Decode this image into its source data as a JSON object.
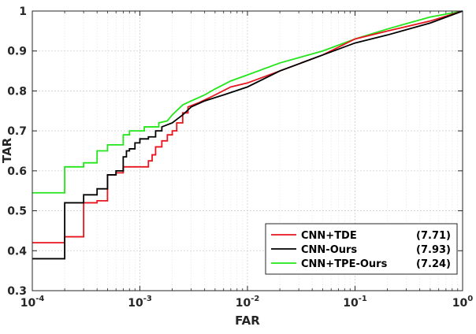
{
  "chart_data": {
    "type": "line",
    "xlabel": "FAR",
    "ylabel": "TAR",
    "x_scale": "log",
    "xlim": [
      0.0001,
      1
    ],
    "ylim": [
      0.3,
      1
    ],
    "x_ticks": [
      {
        "value": 0.0001,
        "base": "10",
        "exp": "-4"
      },
      {
        "value": 0.001,
        "base": "10",
        "exp": "-3"
      },
      {
        "value": 0.01,
        "base": "10",
        "exp": "-2"
      },
      {
        "value": 0.1,
        "base": "10",
        "exp": "-1"
      },
      {
        "value": 1,
        "base": "10",
        "exp": "0"
      }
    ],
    "y_ticks": [
      {
        "value": 0.3,
        "label": "0.3"
      },
      {
        "value": 0.4,
        "label": "0.4"
      },
      {
        "value": 0.5,
        "label": "0.5"
      },
      {
        "value": 0.6,
        "label": "0.6"
      },
      {
        "value": 0.7,
        "label": "0.7"
      },
      {
        "value": 0.8,
        "label": "0.8"
      },
      {
        "value": 0.9,
        "label": "0.9"
      },
      {
        "value": 1,
        "label": "1"
      }
    ],
    "grid": true,
    "legend_position": "bottom-right",
    "series": [
      {
        "name": "CNN+TDE",
        "score": "(7.71)",
        "color": "#e8141e",
        "points": [
          [
            0.0001,
            0.42
          ],
          [
            0.0002,
            0.42
          ],
          [
            0.0002,
            0.435
          ],
          [
            0.0003,
            0.435
          ],
          [
            0.0003,
            0.52
          ],
          [
            0.0004,
            0.52
          ],
          [
            0.0004,
            0.525
          ],
          [
            0.0005,
            0.525
          ],
          [
            0.0005,
            0.59
          ],
          [
            0.0006,
            0.59
          ],
          [
            0.0006,
            0.595
          ],
          [
            0.0007,
            0.595
          ],
          [
            0.0007,
            0.61
          ],
          [
            0.0012,
            0.61
          ],
          [
            0.0012,
            0.625
          ],
          [
            0.0013,
            0.625
          ],
          [
            0.0013,
            0.64
          ],
          [
            0.0014,
            0.64
          ],
          [
            0.0014,
            0.66
          ],
          [
            0.0016,
            0.66
          ],
          [
            0.0016,
            0.675
          ],
          [
            0.0018,
            0.675
          ],
          [
            0.0018,
            0.69
          ],
          [
            0.002,
            0.69
          ],
          [
            0.002,
            0.7
          ],
          [
            0.0022,
            0.7
          ],
          [
            0.0022,
            0.72
          ],
          [
            0.0025,
            0.72
          ],
          [
            0.0025,
            0.745
          ],
          [
            0.0028,
            0.745
          ],
          [
            0.0028,
            0.76
          ],
          [
            0.0035,
            0.77
          ],
          [
            0.005,
            0.79
          ],
          [
            0.007,
            0.81
          ],
          [
            0.01,
            0.82
          ],
          [
            0.02,
            0.85
          ],
          [
            0.05,
            0.89
          ],
          [
            0.1,
            0.93
          ],
          [
            0.2,
            0.95
          ],
          [
            0.5,
            0.975
          ],
          [
            1,
            1
          ]
        ]
      },
      {
        "name": "CNN-Ours",
        "score": "(7.93)",
        "color": "#000000",
        "points": [
          [
            0.0001,
            0.38
          ],
          [
            0.0002,
            0.38
          ],
          [
            0.0002,
            0.52
          ],
          [
            0.0003,
            0.52
          ],
          [
            0.0003,
            0.54
          ],
          [
            0.0004,
            0.54
          ],
          [
            0.0004,
            0.555
          ],
          [
            0.0005,
            0.555
          ],
          [
            0.0005,
            0.59
          ],
          [
            0.0006,
            0.59
          ],
          [
            0.0006,
            0.6
          ],
          [
            0.0007,
            0.6
          ],
          [
            0.0007,
            0.635
          ],
          [
            0.00075,
            0.635
          ],
          [
            0.00075,
            0.65
          ],
          [
            0.0008,
            0.65
          ],
          [
            0.0008,
            0.655
          ],
          [
            0.0009,
            0.655
          ],
          [
            0.0009,
            0.67
          ],
          [
            0.001,
            0.67
          ],
          [
            0.001,
            0.68
          ],
          [
            0.0012,
            0.68
          ],
          [
            0.0012,
            0.685
          ],
          [
            0.0014,
            0.685
          ],
          [
            0.0014,
            0.7
          ],
          [
            0.0016,
            0.7
          ],
          [
            0.0016,
            0.71
          ],
          [
            0.002,
            0.72
          ],
          [
            0.0025,
            0.74
          ],
          [
            0.003,
            0.76
          ],
          [
            0.004,
            0.775
          ],
          [
            0.006,
            0.79
          ],
          [
            0.01,
            0.81
          ],
          [
            0.02,
            0.85
          ],
          [
            0.05,
            0.89
          ],
          [
            0.1,
            0.92
          ],
          [
            0.2,
            0.94
          ],
          [
            0.5,
            0.97
          ],
          [
            1,
            1
          ]
        ]
      },
      {
        "name": "CNN+TPE-Ours",
        "score": "(7.24)",
        "color": "#22e619",
        "points": [
          [
            0.0001,
            0.545
          ],
          [
            0.0002,
            0.545
          ],
          [
            0.0002,
            0.61
          ],
          [
            0.0003,
            0.61
          ],
          [
            0.0003,
            0.62
          ],
          [
            0.0004,
            0.62
          ],
          [
            0.0004,
            0.65
          ],
          [
            0.0005,
            0.65
          ],
          [
            0.0005,
            0.665
          ],
          [
            0.0007,
            0.665
          ],
          [
            0.0007,
            0.69
          ],
          [
            0.0008,
            0.69
          ],
          [
            0.0008,
            0.7
          ],
          [
            0.0011,
            0.7
          ],
          [
            0.0011,
            0.71
          ],
          [
            0.0015,
            0.71
          ],
          [
            0.0015,
            0.72
          ],
          [
            0.0018,
            0.725
          ],
          [
            0.002,
            0.74
          ],
          [
            0.0025,
            0.765
          ],
          [
            0.003,
            0.775
          ],
          [
            0.004,
            0.79
          ],
          [
            0.005,
            0.805
          ],
          [
            0.007,
            0.825
          ],
          [
            0.01,
            0.84
          ],
          [
            0.02,
            0.87
          ],
          [
            0.05,
            0.9
          ],
          [
            0.1,
            0.93
          ],
          [
            0.2,
            0.955
          ],
          [
            0.5,
            0.985
          ],
          [
            1,
            1
          ]
        ]
      }
    ]
  }
}
